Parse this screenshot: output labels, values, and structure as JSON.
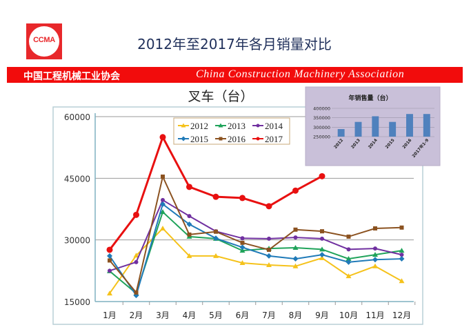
{
  "header": {
    "logo_text": "CCMA",
    "title": "2012年至2017年各月销量对比",
    "org_cn": "中国工程机械工业协会",
    "org_en": "China Construction Machinery Association"
  },
  "colors": {
    "brand_red": "#f20c0c",
    "inset_bg": "#c9c0d9",
    "bar_blue": "#4f81bd"
  },
  "chart_data": [
    {
      "type": "line",
      "title": "叉车（台）",
      "categories": [
        "1月",
        "2月",
        "3月",
        "4月",
        "5月",
        "6月",
        "7月",
        "8月",
        "9月",
        "10月",
        "11月",
        "12月"
      ],
      "ylim": [
        15000,
        60000
      ],
      "yticks": [
        "15000",
        "30000",
        "45000",
        "60000"
      ],
      "grid": true,
      "legend_position": "top-center",
      "series": [
        {
          "name": "2012",
          "color": "#f5c21b",
          "marker": "triangle",
          "values": [
            17000,
            26200,
            32800,
            26100,
            26100,
            24400,
            23900,
            23600,
            25600,
            21200,
            23600,
            20000
          ]
        },
        {
          "name": "2013",
          "color": "#1fa35a",
          "marker": "triangle",
          "values": [
            22400,
            17000,
            36800,
            30800,
            30300,
            27400,
            27900,
            28100,
            27700,
            25400,
            26400,
            27400
          ]
        },
        {
          "name": "2014",
          "color": "#7030a0",
          "marker": "circle",
          "values": [
            22500,
            24600,
            39700,
            35800,
            32100,
            30400,
            30300,
            30600,
            30300,
            27700,
            27900,
            26400
          ]
        },
        {
          "name": "2015",
          "color": "#1f7ab8",
          "marker": "diamond",
          "values": [
            26100,
            16500,
            38700,
            33800,
            30400,
            28200,
            26100,
            25400,
            26400,
            24600,
            25200,
            25400
          ]
        },
        {
          "name": "2016",
          "color": "#8b5220",
          "marker": "square",
          "values": [
            25000,
            17200,
            45400,
            31300,
            32000,
            29300,
            27600,
            32500,
            32100,
            30800,
            32800,
            33000
          ]
        },
        {
          "name": "2017",
          "color": "#e81010",
          "marker": "circle",
          "values": [
            27600,
            36100,
            55000,
            42900,
            40500,
            40200,
            38200,
            42000,
            45500,
            null,
            null,
            null
          ]
        }
      ]
    },
    {
      "type": "bar",
      "title": "年销售量（台）",
      "categories": [
        "2012",
        "2013",
        "2014",
        "2015",
        "2016",
        "2017年1-9"
      ],
      "values": [
        290000,
        328000,
        358000,
        328000,
        370000,
        370000
      ],
      "ylim": [
        250000,
        400000
      ],
      "yticks": [
        "250000",
        "300000",
        "350000",
        "400000"
      ],
      "grid": true
    }
  ]
}
